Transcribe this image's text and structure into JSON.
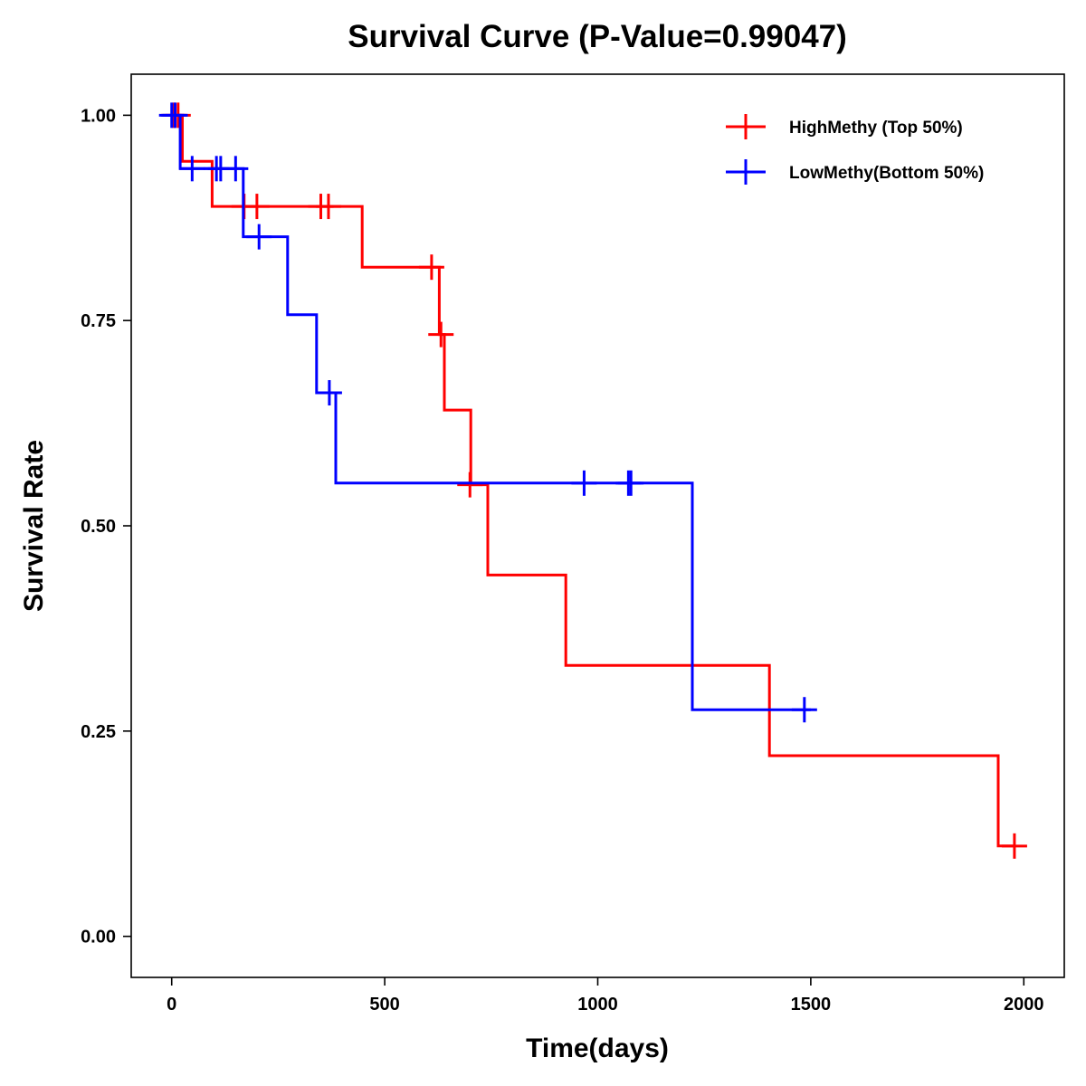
{
  "chart_data": {
    "type": "line",
    "subtype": "kaplan-meier-step",
    "title": "Survival Curve (P-Value=0.99047)",
    "xlabel": "Time(days)",
    "ylabel": "Survival Rate",
    "xlim": [
      -95,
      2095
    ],
    "ylim": [
      -0.05,
      1.05
    ],
    "x_ticks": [
      0,
      500,
      1000,
      1500,
      2000
    ],
    "x_tick_labels": [
      "0",
      "500",
      "1000",
      "1500",
      "2000"
    ],
    "y_ticks": [
      0,
      0.25,
      0.5,
      0.75,
      1
    ],
    "y_tick_labels": [
      "0.00",
      "0.25",
      "0.50",
      "0.75",
      "1.00"
    ],
    "grid": false,
    "legend_position": "top-right",
    "series": [
      {
        "name": "HighMethy (Top 50%)",
        "color": "#ff0000",
        "steps": [
          {
            "x": 0,
            "y": 1.0
          },
          {
            "x": 25,
            "y": 0.944
          },
          {
            "x": 95,
            "y": 0.889
          },
          {
            "x": 447,
            "y": 0.815
          },
          {
            "x": 628,
            "y": 0.733
          },
          {
            "x": 640,
            "y": 0.641
          },
          {
            "x": 702,
            "y": 0.55
          },
          {
            "x": 742,
            "y": 0.44
          },
          {
            "x": 925,
            "y": 0.33
          },
          {
            "x": 1403,
            "y": 0.22
          },
          {
            "x": 1940,
            "y": 0.11
          }
        ],
        "end_x": 1978,
        "censored": [
          {
            "x": 5,
            "y": 1.0
          },
          {
            "x": 15,
            "y": 1.0
          },
          {
            "x": 170,
            "y": 0.889
          },
          {
            "x": 200,
            "y": 0.889
          },
          {
            "x": 350,
            "y": 0.889
          },
          {
            "x": 368,
            "y": 0.889
          },
          {
            "x": 610,
            "y": 0.815
          },
          {
            "x": 632,
            "y": 0.733
          },
          {
            "x": 700,
            "y": 0.55
          },
          {
            "x": 1978,
            "y": 0.11
          }
        ]
      },
      {
        "name": "LowMethy(Bottom 50%)",
        "color": "#0000ff",
        "steps": [
          {
            "x": 0,
            "y": 1.0
          },
          {
            "x": 20,
            "y": 0.935
          },
          {
            "x": 168,
            "y": 0.852
          },
          {
            "x": 272,
            "y": 0.757
          },
          {
            "x": 340,
            "y": 0.662
          },
          {
            "x": 385,
            "y": 0.552
          },
          {
            "x": 1222,
            "y": 0.276
          }
        ],
        "end_x": 1500,
        "censored": [
          {
            "x": 0,
            "y": 1.0
          },
          {
            "x": 8,
            "y": 1.0
          },
          {
            "x": 48,
            "y": 0.935
          },
          {
            "x": 105,
            "y": 0.935
          },
          {
            "x": 115,
            "y": 0.935
          },
          {
            "x": 150,
            "y": 0.935
          },
          {
            "x": 205,
            "y": 0.852
          },
          {
            "x": 370,
            "y": 0.662
          },
          {
            "x": 968,
            "y": 0.552
          },
          {
            "x": 1072,
            "y": 0.552
          },
          {
            "x": 1078,
            "y": 0.552
          },
          {
            "x": 1485,
            "y": 0.276
          }
        ]
      }
    ]
  }
}
